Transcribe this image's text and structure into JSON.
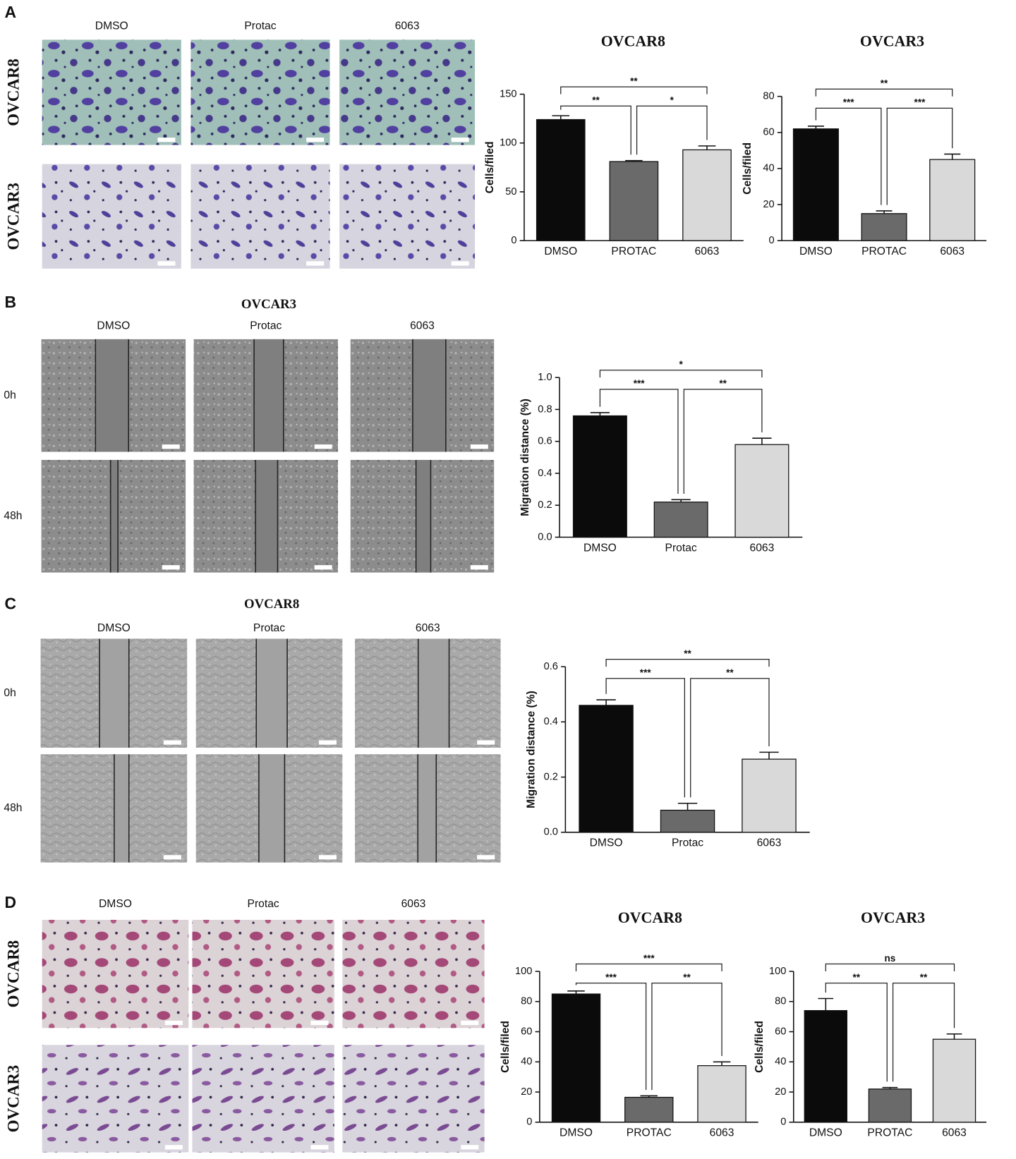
{
  "panels": {
    "A": {
      "label": "A",
      "columns": [
        "DMSO",
        "Protac",
        "6063"
      ],
      "rows": [
        "OVCAR8",
        "OVCAR3"
      ]
    },
    "B": {
      "label": "B",
      "title": "OVCAR3",
      "columns": [
        "DMSO",
        "Protac",
        "6063"
      ],
      "rows": [
        "0h",
        "48h"
      ]
    },
    "C": {
      "label": "C",
      "title": "OVCAR8",
      "columns": [
        "DMSO",
        "Protac",
        "6063"
      ],
      "rows": [
        "0h",
        "48h"
      ]
    },
    "D": {
      "label": "D",
      "columns": [
        "DMSO",
        "Protac",
        "6063"
      ],
      "rows": [
        "OVCAR8",
        "OVCAR3"
      ]
    }
  },
  "chart_data": [
    {
      "type": "bar",
      "title": "OVCAR8",
      "ylabel": "Cells/filed",
      "categories": [
        "DMSO",
        "PROTAC",
        "6063"
      ],
      "values": [
        124,
        81,
        93
      ],
      "errors": [
        4,
        1,
        4
      ],
      "colors": [
        "#0b0b0b",
        "#6a6a6a",
        "#d9d9d9"
      ],
      "ylim": [
        0,
        150
      ],
      "yticks": [
        0,
        50,
        100,
        150
      ],
      "significance": [
        {
          "pair": [
            0,
            2
          ],
          "label": "**"
        },
        {
          "pair": [
            0,
            1
          ],
          "label": "**"
        },
        {
          "pair": [
            1,
            2
          ],
          "label": "*"
        }
      ]
    },
    {
      "type": "bar",
      "title": "OVCAR3",
      "ylabel": "Cells/filed",
      "categories": [
        "DMSO",
        "PROTAC",
        "6063"
      ],
      "values": [
        62,
        15,
        45
      ],
      "errors": [
        1.5,
        1.5,
        3
      ],
      "colors": [
        "#0b0b0b",
        "#6a6a6a",
        "#d9d9d9"
      ],
      "ylim": [
        0,
        80
      ],
      "yticks": [
        0,
        20,
        40,
        60,
        80
      ],
      "significance": [
        {
          "pair": [
            0,
            2
          ],
          "label": "**"
        },
        {
          "pair": [
            0,
            1
          ],
          "label": "***"
        },
        {
          "pair": [
            1,
            2
          ],
          "label": "***"
        }
      ]
    },
    {
      "type": "bar",
      "ylabel": "Migration distance (%)",
      "categories": [
        "DMSO",
        "Protac",
        "6063"
      ],
      "values": [
        0.76,
        0.22,
        0.58
      ],
      "errors": [
        0.02,
        0.015,
        0.04
      ],
      "colors": [
        "#0b0b0b",
        "#6a6a6a",
        "#d9d9d9"
      ],
      "ylim": [
        0,
        1.0
      ],
      "yticks": [
        {
          "value": 0,
          "label": "0.0"
        },
        0.2,
        0.4,
        0.6,
        0.8,
        {
          "value": 1.0,
          "label": "1.0"
        }
      ],
      "significance": [
        {
          "pair": [
            0,
            2
          ],
          "label": "*"
        },
        {
          "pair": [
            0,
            1
          ],
          "label": "***"
        },
        {
          "pair": [
            1,
            2
          ],
          "label": "**"
        }
      ]
    },
    {
      "type": "bar",
      "ylabel": "Migration distance (%)",
      "categories": [
        "DMSO",
        "Protac",
        "6063"
      ],
      "values": [
        0.46,
        0.08,
        0.265
      ],
      "errors": [
        0.02,
        0.025,
        0.025
      ],
      "colors": [
        "#0b0b0b",
        "#6a6a6a",
        "#d9d9d9"
      ],
      "ylim": [
        0,
        0.6
      ],
      "yticks": [
        {
          "value": 0,
          "label": "0.0"
        },
        0.2,
        0.4,
        0.6
      ],
      "significance": [
        {
          "pair": [
            0,
            2
          ],
          "label": "**"
        },
        {
          "pair": [
            0,
            1
          ],
          "label": "***"
        },
        {
          "pair": [
            1,
            2
          ],
          "label": "**"
        }
      ]
    },
    {
      "type": "bar",
      "title": "OVCAR8",
      "ylabel": "Cells/filed",
      "categories": [
        "DMSO",
        "PROTAC",
        "6063"
      ],
      "values": [
        85,
        16.5,
        37.5
      ],
      "errors": [
        2,
        1,
        2.5
      ],
      "colors": [
        "#0b0b0b",
        "#6a6a6a",
        "#d9d9d9"
      ],
      "ylim": [
        0,
        100
      ],
      "yticks": [
        0,
        20,
        40,
        60,
        80,
        100
      ],
      "significance": [
        {
          "pair": [
            0,
            2
          ],
          "label": "***"
        },
        {
          "pair": [
            0,
            1
          ],
          "label": "***"
        },
        {
          "pair": [
            1,
            2
          ],
          "label": "**"
        }
      ]
    },
    {
      "type": "bar",
      "title": "OVCAR3",
      "ylabel": "Cells/filed",
      "categories": [
        "DMSO",
        "PROTAC",
        "6063"
      ],
      "values": [
        74,
        22,
        55
      ],
      "errors": [
        8,
        1,
        3.5
      ],
      "colors": [
        "#0b0b0b",
        "#6a6a6a",
        "#d9d9d9"
      ],
      "ylim": [
        0,
        100
      ],
      "yticks": [
        0,
        20,
        40,
        60,
        80,
        100
      ],
      "significance": [
        {
          "pair": [
            0,
            2
          ],
          "label": "ns"
        },
        {
          "pair": [
            0,
            1
          ],
          "label": "**"
        },
        {
          "pair": [
            1,
            2
          ],
          "label": "**"
        }
      ]
    }
  ]
}
